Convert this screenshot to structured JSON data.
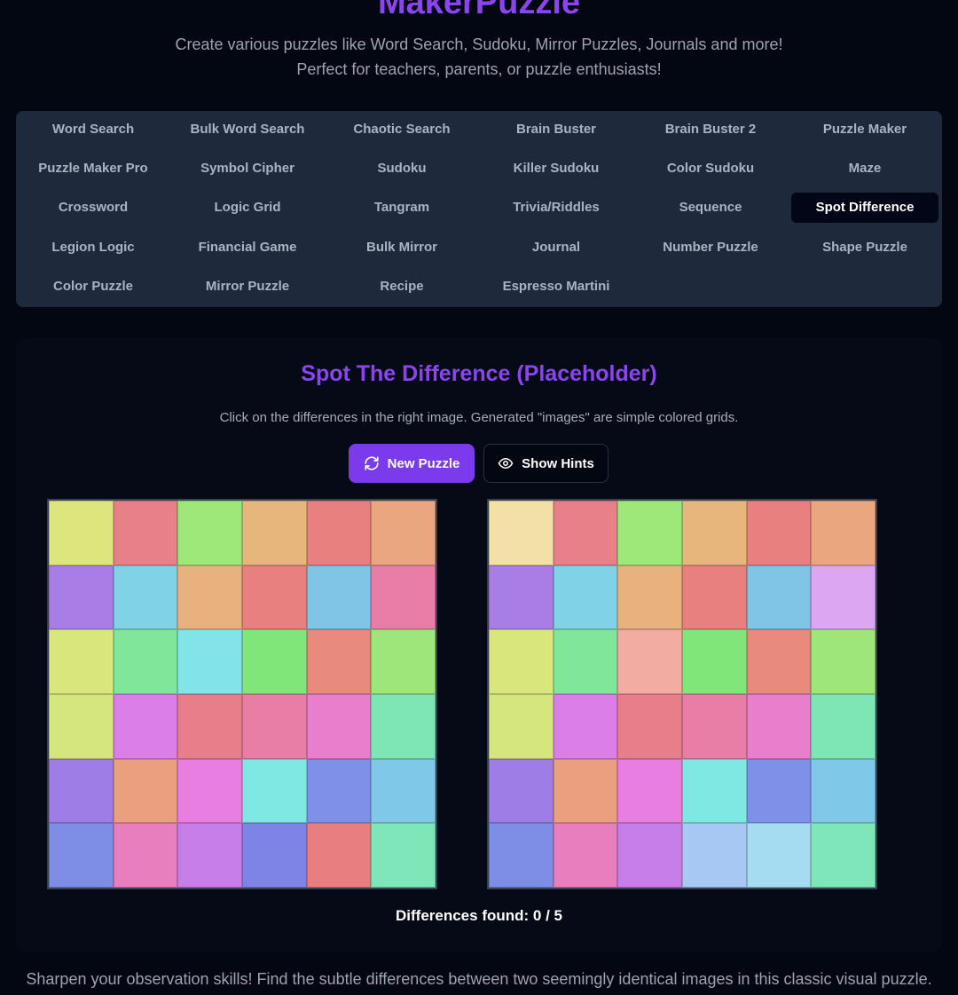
{
  "header": {
    "title": "MakerPuzzle",
    "subtitle": "Create various puzzles like Word Search, Sudoku, Mirror Puzzles, Journals and more! Perfect for teachers, parents, or puzzle enthusiasts!"
  },
  "nav": {
    "active": "Spot Difference",
    "items": [
      "Word Search",
      "Bulk Word Search",
      "Chaotic Search",
      "Brain Buster",
      "Brain Buster 2",
      "Puzzle Maker",
      "Puzzle Maker Pro",
      "Symbol Cipher",
      "Sudoku",
      "Killer Sudoku",
      "Color Sudoku",
      "Maze",
      "Crossword",
      "Logic Grid",
      "Tangram",
      "Trivia/Riddles",
      "Sequence",
      "Spot Difference",
      "Legion Logic",
      "Financial Game",
      "Bulk Mirror",
      "Journal",
      "Number Puzzle",
      "Shape Puzzle",
      "Color Puzzle",
      "Mirror Puzzle",
      "Recipe",
      "Espresso Martini"
    ]
  },
  "main": {
    "title": "Spot The Difference (Placeholder)",
    "description": "Click on the differences in the right image. Generated \"images\" are simple colored grids.",
    "new_puzzle_label": "New Puzzle",
    "show_hints_label": "Show Hints",
    "found_text": "Differences found: 0 / 5"
  },
  "colors": {
    "accent": "#7c3aed"
  },
  "grids": {
    "left": [
      [
        "#dde67c",
        "#e88088",
        "#9ee87a",
        "#e6b67c",
        "#e88080",
        "#eaa67e"
      ],
      [
        "#a87ee6",
        "#80d2e6",
        "#e8b27e",
        "#e88080",
        "#80c4e6",
        "#e87ea8"
      ],
      [
        "#d8e67c",
        "#80e69a",
        "#80e4e8",
        "#80e67a",
        "#e88a7c",
        "#9ee67a"
      ],
      [
        "#d4e67c",
        "#dc7ee8",
        "#e87e8a",
        "#e87ea6",
        "#e87ecc",
        "#7ee6b4"
      ],
      [
        "#9e7ee6",
        "#eaa07e",
        "#e87ee0",
        "#80e8e2",
        "#7e90e8",
        "#80c8e8"
      ],
      [
        "#7e8ee6",
        "#e87ebe",
        "#c87ee8",
        "#7e84e6",
        "#e87e80",
        "#7ee6b8"
      ]
    ],
    "right": [
      [
        "#f2e0a6",
        "#e88088",
        "#9ee87a",
        "#e6b67c",
        "#e88080",
        "#eaa67e"
      ],
      [
        "#a87ee6",
        "#80d2e6",
        "#e8b27e",
        "#e88080",
        "#80c4e6",
        "#dca6f2"
      ],
      [
        "#d8e67c",
        "#80e69a",
        "#f2aca2",
        "#80e67a",
        "#e88a7c",
        "#9ee67a"
      ],
      [
        "#d4e67c",
        "#dc7ee8",
        "#e87e8a",
        "#e87ea6",
        "#e87ecc",
        "#7ee6b4"
      ],
      [
        "#9e7ee6",
        "#eaa07e",
        "#e87ee0",
        "#80e8e2",
        "#7e90e8",
        "#80c8e8"
      ],
      [
        "#7e8ee6",
        "#e87ebe",
        "#c87ee8",
        "#a6c8f2",
        "#a6dcf2",
        "#7ee6b8"
      ]
    ]
  },
  "footer": {
    "text": "Sharpen your observation skills! Find the subtle differences between two seemingly identical images in this classic visual puzzle."
  }
}
